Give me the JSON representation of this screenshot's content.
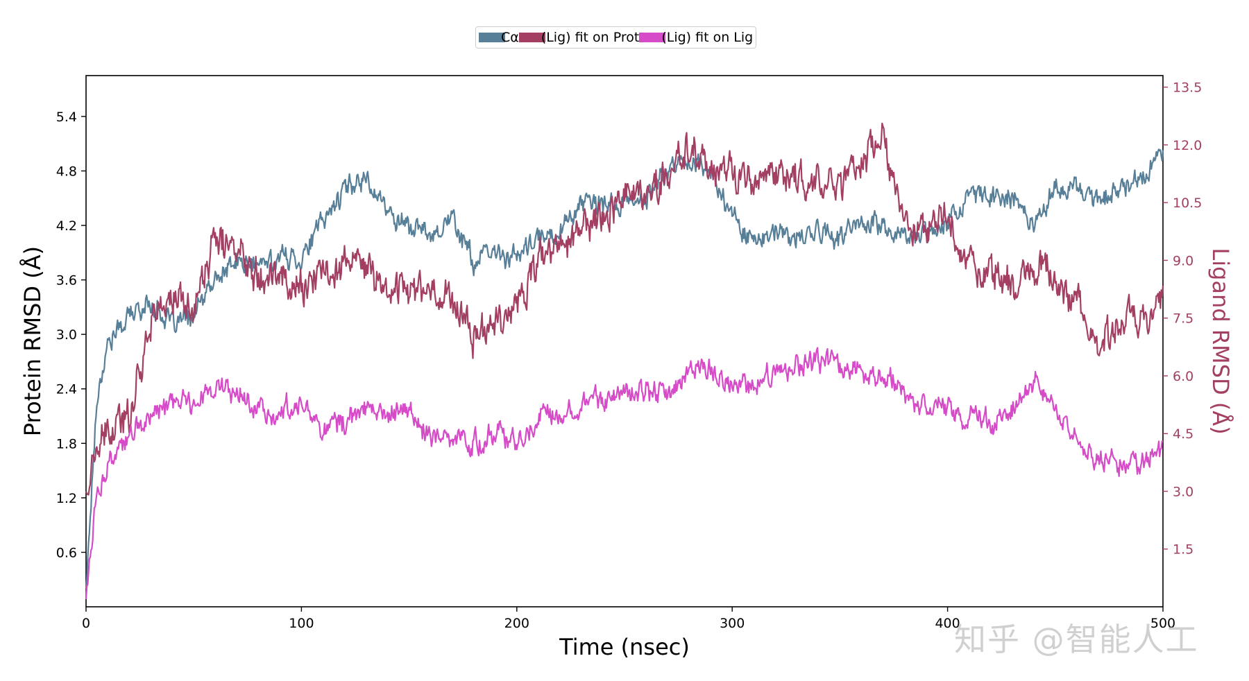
{
  "chart_data": {
    "type": "line",
    "xlabel": "Time (nsec)",
    "ylabel_left": "Protein RMSD (Å)",
    "ylabel_right": "Ligand RMSD (Å)",
    "xlim": [
      0,
      500
    ],
    "ylim_left": [
      0,
      5.85
    ],
    "ylim_right": [
      0,
      13.8
    ],
    "x_ticks": [
      "0",
      "100",
      "200",
      "300",
      "400",
      "500"
    ],
    "y_left_ticks": [
      "0.6",
      "1.2",
      "1.8",
      "2.4",
      "3.0",
      "3.6",
      "4.2",
      "4.8",
      "5.4"
    ],
    "y_right_ticks": [
      "1.5",
      "3.0",
      "4.5",
      "6.0",
      "7.5",
      "9.0",
      "10.5",
      "12.0",
      "13.5"
    ],
    "legend_position": "top-center",
    "series": [
      {
        "name": "Cα",
        "axis": "left",
        "color": "#587f98",
        "x": [
          0,
          5,
          10,
          20,
          30,
          40,
          50,
          60,
          70,
          80,
          90,
          100,
          110,
          120,
          130,
          140,
          150,
          160,
          170,
          180,
          190,
          200,
          210,
          220,
          230,
          240,
          250,
          260,
          270,
          280,
          290,
          300,
          310,
          320,
          330,
          340,
          350,
          360,
          370,
          380,
          390,
          400,
          410,
          420,
          430,
          440,
          450,
          460,
          470,
          480,
          490,
          500
        ],
        "values": [
          0.2,
          2.3,
          2.9,
          3.2,
          3.35,
          3.1,
          3.2,
          3.6,
          3.8,
          3.75,
          3.85,
          3.85,
          4.25,
          4.6,
          4.75,
          4.35,
          4.2,
          4.1,
          4.3,
          3.8,
          3.9,
          3.85,
          4.05,
          4.15,
          4.45,
          4.4,
          4.45,
          4.5,
          4.8,
          4.95,
          4.8,
          4.3,
          4.05,
          4.1,
          4.05,
          4.15,
          4.05,
          4.25,
          4.2,
          4.05,
          4.15,
          4.25,
          4.5,
          4.55,
          4.5,
          4.25,
          4.6,
          4.6,
          4.5,
          4.6,
          4.75,
          5.0
        ]
      },
      {
        "name": "(Lig) fit on Prot",
        "axis": "right",
        "color": "#a23f63",
        "x": [
          0,
          5,
          10,
          20,
          30,
          40,
          50,
          60,
          70,
          80,
          90,
          100,
          110,
          120,
          130,
          140,
          150,
          160,
          170,
          180,
          190,
          200,
          210,
          220,
          230,
          240,
          250,
          260,
          270,
          280,
          290,
          300,
          310,
          320,
          330,
          340,
          350,
          360,
          370,
          380,
          390,
          400,
          410,
          420,
          430,
          440,
          450,
          460,
          470,
          480,
          490,
          500
        ],
        "values": [
          3.0,
          4.0,
          4.4,
          5.0,
          7.5,
          8.0,
          7.8,
          9.5,
          9.3,
          8.8,
          8.6,
          8.3,
          8.6,
          9.0,
          8.8,
          8.2,
          8.4,
          8.2,
          8.0,
          7.0,
          7.5,
          7.8,
          9.0,
          9.3,
          9.8,
          10.2,
          10.8,
          10.6,
          11.2,
          12.0,
          11.3,
          11.3,
          10.9,
          11.4,
          11.1,
          11.0,
          11.0,
          11.7,
          12.1,
          9.9,
          9.7,
          10.0,
          8.8,
          8.7,
          8.5,
          8.9,
          8.5,
          8.0,
          6.6,
          7.5,
          7.4,
          8.0
        ]
      },
      {
        "name": "(Lig) fit on Lig",
        "axis": "right",
        "color": "#d64bc7",
        "x": [
          0,
          5,
          10,
          20,
          30,
          40,
          50,
          60,
          70,
          80,
          90,
          100,
          110,
          120,
          130,
          140,
          150,
          160,
          170,
          180,
          190,
          200,
          210,
          220,
          230,
          240,
          250,
          260,
          270,
          280,
          290,
          300,
          310,
          320,
          330,
          340,
          350,
          360,
          370,
          380,
          390,
          400,
          410,
          420,
          430,
          440,
          450,
          460,
          470,
          480,
          490,
          500
        ],
        "values": [
          0.2,
          3.0,
          3.6,
          4.4,
          5.0,
          5.2,
          5.4,
          5.7,
          5.5,
          5.2,
          5.0,
          5.3,
          4.7,
          4.8,
          5.1,
          5.0,
          5.1,
          4.4,
          4.4,
          4.2,
          4.5,
          4.3,
          4.9,
          5.1,
          5.3,
          5.4,
          5.7,
          5.6,
          5.5,
          6.1,
          6.2,
          5.7,
          5.8,
          6.0,
          6.3,
          6.4,
          6.3,
          6.1,
          6.1,
          5.4,
          5.3,
          5.2,
          4.9,
          4.8,
          5.1,
          5.9,
          5.2,
          4.2,
          3.8,
          3.7,
          3.7,
          4.2
        ]
      }
    ],
    "watermark": "知乎 @智能人工"
  }
}
